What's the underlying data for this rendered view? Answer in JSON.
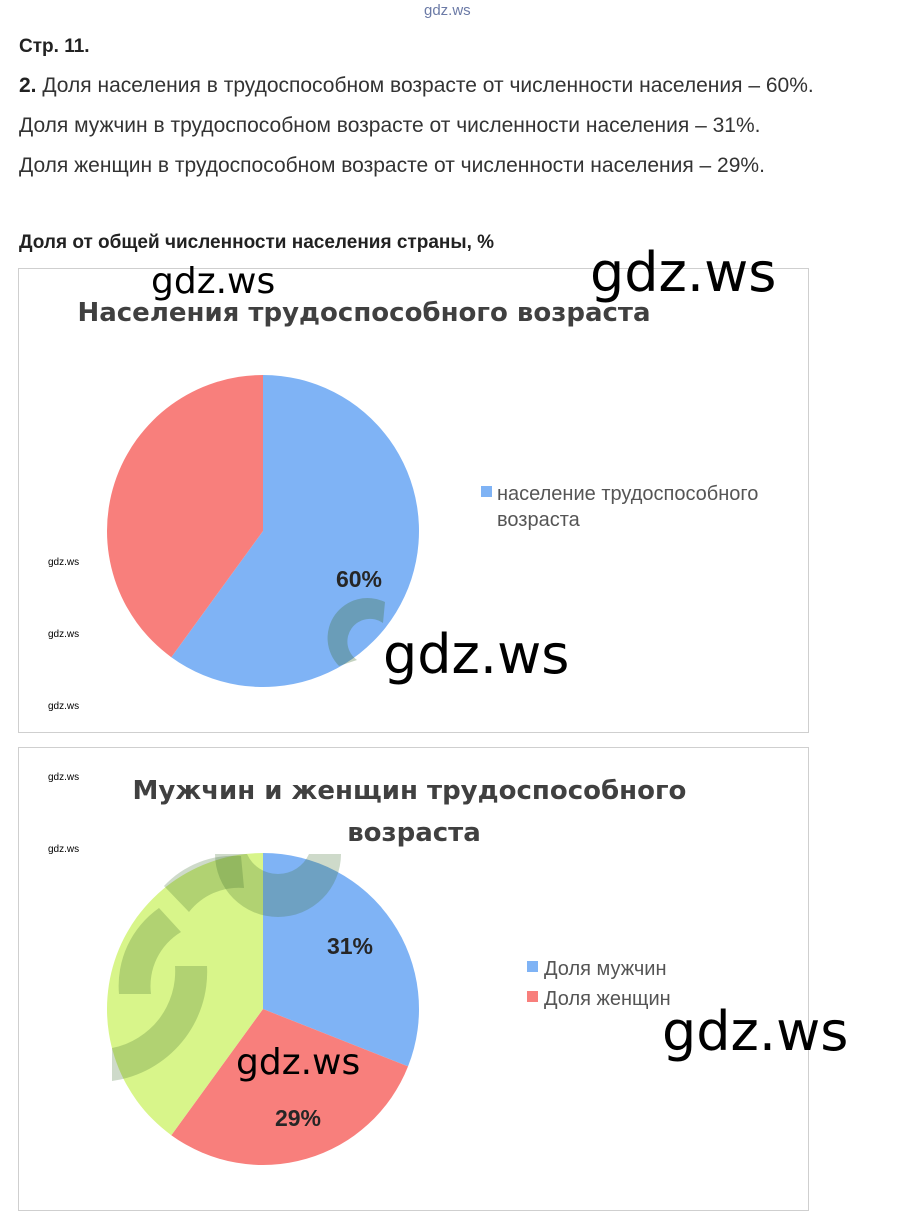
{
  "header": {
    "watermark_top": "gdz.ws",
    "page_ref": "Стр. 11.",
    "task_number": "2.",
    "line1_text": " Доля населения в трудоспособном возрасте от численности населения – 60%.",
    "line2_text": "Доля мужчин в трудоспособном возрасте от численности населения – 31%.",
    "line3_text": "Доля женщин в трудоспособном возрасте от численности населения – 29%.",
    "caption": "Доля от общей численности населения страны, %"
  },
  "watermarks": {
    "large": "gdz.ws",
    "small": "gdz.ws"
  },
  "colors": {
    "blue": "#7fb3f5",
    "red": "#f87f7c",
    "green": "#d8f58a",
    "watermark_shape": "#3a6a2a"
  },
  "chart_data": [
    {
      "type": "pie",
      "title": "Населения трудоспособного возраста",
      "slices": [
        {
          "label": "население трудоспособного возраста",
          "value": 60,
          "color": "#7fb3f5",
          "data_label": "60%"
        },
        {
          "label": "",
          "value": 40,
          "color": "#f87f7c",
          "data_label": ""
        }
      ],
      "legend": [
        "население трудоспособного возраста"
      ],
      "legend_position": "right"
    },
    {
      "type": "pie",
      "title": "Мужчин и женщин трудоспособного возраста",
      "title_lines": [
        "Мужчин и женщин трудоспособного",
        "возраста"
      ],
      "slices": [
        {
          "label": "Доля мужчин",
          "value": 31,
          "color": "#7fb3f5",
          "data_label": "31%"
        },
        {
          "label": "Доля женщин",
          "value": 29,
          "color": "#f87f7c",
          "data_label": "29%"
        },
        {
          "label": "",
          "value": 40,
          "color": "#d8f58a",
          "data_label": ""
        }
      ],
      "legend": [
        "Доля мужчин",
        "Доля женщин"
      ],
      "legend_position": "right"
    }
  ]
}
